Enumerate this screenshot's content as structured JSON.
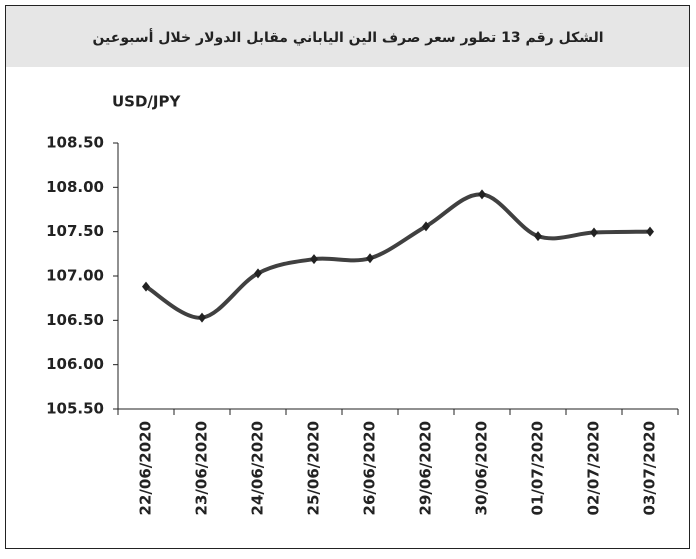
{
  "chart_data": {
    "type": "line",
    "title": "الشكل رقم 13 تطور سعر صرف الين الياباني مقابل الدولار خلال أسبوعين",
    "y_label": "USD/JPY",
    "categories": [
      "22/06/2020",
      "23/06/2020",
      "24/06/2020",
      "25/06/2020",
      "26/06/2020",
      "29/06/2020",
      "30/06/2020",
      "01/07/2020",
      "02/07/2020",
      "03/07/2020"
    ],
    "series": [
      {
        "name": "USD/JPY",
        "color": "#404040",
        "values": [
          106.88,
          106.53,
          107.03,
          107.19,
          107.2,
          107.56,
          107.92,
          107.45,
          107.49,
          107.5
        ]
      }
    ],
    "ylim": [
      105.5,
      108.5
    ],
    "yticks": [
      {
        "value": 105.5,
        "label": "105.50"
      },
      {
        "value": 106,
        "label": "106.00"
      },
      {
        "value": 106.5,
        "label": "106.50"
      },
      {
        "value": 107,
        "label": "107.00"
      },
      {
        "value": 107.5,
        "label": "107.50"
      },
      {
        "value": 108,
        "label": "108.00"
      },
      {
        "value": 108.5,
        "label": "108.50"
      }
    ],
    "grid": false
  }
}
